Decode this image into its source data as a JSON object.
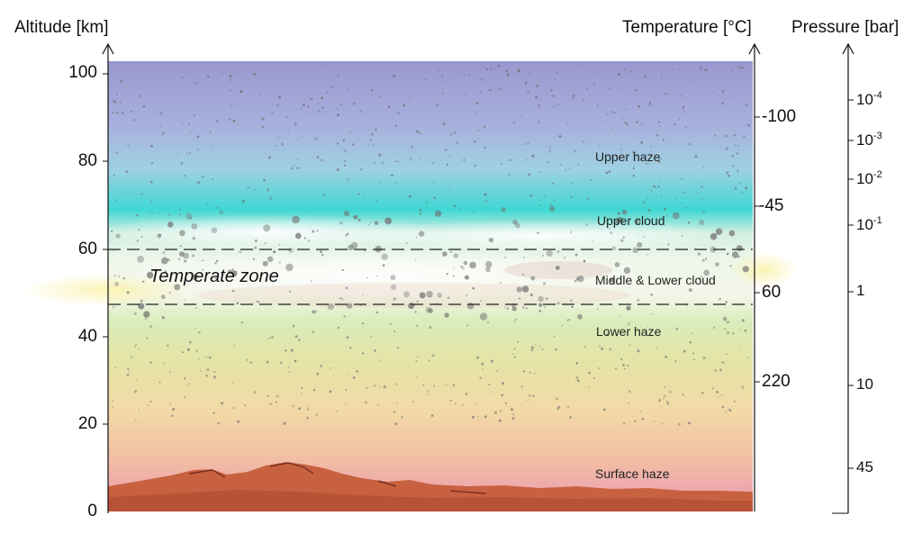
{
  "axes": {
    "altitude_title": "Altitude [km]",
    "temperature_title": "Temperature [°C]",
    "pressure_title": "Pressure [bar]"
  },
  "altitude_ticks": [
    "100",
    "80",
    "60",
    "40",
    "20",
    "0"
  ],
  "temperature_ticks": [
    "-100",
    "-45",
    "60",
    "220"
  ],
  "pressure_ticks": [
    {
      "base": "10",
      "exp": "-4"
    },
    {
      "base": "10",
      "exp": "-3"
    },
    {
      "base": "10",
      "exp": "-2"
    },
    {
      "base": "10",
      "exp": "-1"
    },
    {
      "base": "1",
      "exp": ""
    },
    {
      "base": "10",
      "exp": ""
    },
    {
      "base": "45",
      "exp": ""
    }
  ],
  "layers": {
    "upper_haze": "Upper haze",
    "upper_cloud": "Upper cloud",
    "middle_lower_cloud": "Middle & Lower cloud",
    "lower_haze": "Lower haze",
    "surface_haze": "Surface haze"
  },
  "zone_label": "Temperate zone",
  "colors": {
    "sky_top": "#9b9bd0",
    "sky_cyan": "#39d6d2",
    "cloud_white": "#f6fbf4",
    "haze_yellow": "#e8e4a6",
    "haze_orange": "#f3c9a1",
    "surface_pink": "#ec9fb6",
    "terrain": "#c0573a"
  }
}
